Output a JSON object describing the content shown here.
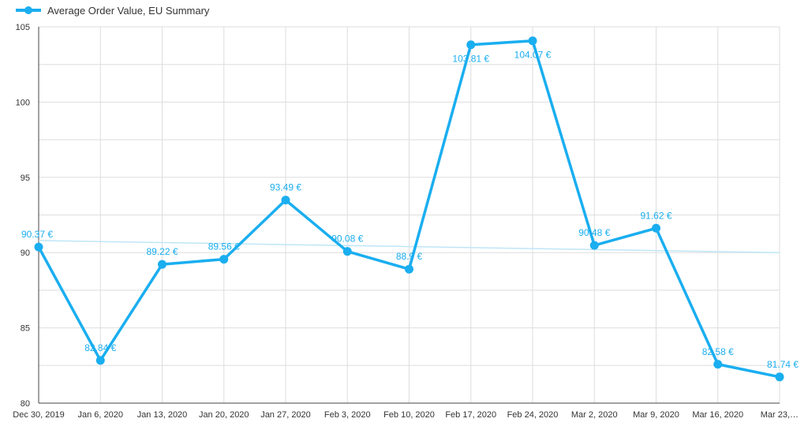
{
  "colors": {
    "series": "#1aaef0",
    "trend": "#bfe6f8",
    "grid": "#dddddd",
    "axis": "#444444"
  },
  "chart_data": {
    "type": "line",
    "legend": {
      "position": "top-left"
    },
    "grid": true,
    "x": [
      "Dec 30, 2019",
      "Jan 6, 2020",
      "Jan 13, 2020",
      "Jan 20, 2020",
      "Jan 27, 2020",
      "Feb 3, 2020",
      "Feb 10, 2020",
      "Feb 17, 2020",
      "Feb 24, 2020",
      "Mar 2, 2020",
      "Mar 9, 2020",
      "Mar 16, 2020",
      "Mar 23,…"
    ],
    "ylim": [
      80,
      105
    ],
    "yticks": [
      "80",
      "85",
      "90",
      "95",
      "100",
      "105"
    ],
    "series": [
      {
        "name": "Average Order Value, EU Summary",
        "values": [
          90.37,
          82.84,
          89.22,
          89.56,
          93.49,
          90.08,
          88.9,
          103.81,
          104.07,
          90.48,
          91.62,
          82.58,
          81.74
        ],
        "labels": [
          "90.37 €",
          "82.84 €",
          "89.22 €",
          "89.56 €",
          "93.49 €",
          "90.08 €",
          "88.9 €",
          "103.81 €",
          "104.07 €",
          "90.48 €",
          "91.62 €",
          "82.58 €",
          "81.74 €"
        ]
      }
    ],
    "trendline": {
      "start": 90.8,
      "end": 90.0
    }
  }
}
